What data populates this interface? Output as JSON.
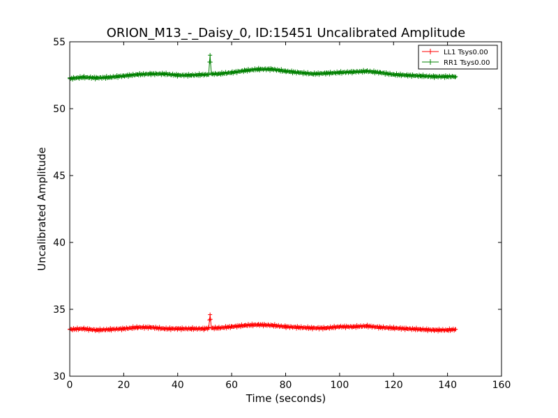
{
  "chart_data": {
    "type": "line",
    "title": "ORION_M13_-_Daisy_0, ID:15451 Uncalibrated Amplitude",
    "xlabel": "Time (seconds)",
    "ylabel": "Uncalibrated Amplitude",
    "xlim": [
      0,
      160
    ],
    "ylim": [
      30,
      55
    ],
    "xticks": [
      0,
      20,
      40,
      60,
      80,
      100,
      120,
      140,
      160
    ],
    "yticks": [
      30,
      35,
      40,
      45,
      50,
      55
    ],
    "grid": false,
    "legend_position": "top-right",
    "series": [
      {
        "name": "LL1 Tsys0.00",
        "color": "#ff0000",
        "marker": "+",
        "x": [
          0,
          5,
          10,
          15,
          20,
          25,
          30,
          35,
          40,
          45,
          50,
          51.5,
          52,
          52.5,
          55,
          60,
          65,
          70,
          75,
          80,
          85,
          90,
          95,
          100,
          105,
          110,
          115,
          120,
          125,
          130,
          135,
          140,
          143
        ],
        "y": [
          33.5,
          33.55,
          33.45,
          33.5,
          33.55,
          33.65,
          33.65,
          33.55,
          33.55,
          33.55,
          33.55,
          33.6,
          34.6,
          33.6,
          33.6,
          33.7,
          33.8,
          33.85,
          33.8,
          33.7,
          33.65,
          33.6,
          33.6,
          33.7,
          33.7,
          33.75,
          33.65,
          33.6,
          33.55,
          33.5,
          33.45,
          33.45,
          33.5
        ]
      },
      {
        "name": "RR1 Tsys0.00",
        "color": "#008000",
        "marker": "+",
        "x": [
          0,
          5,
          10,
          15,
          20,
          25,
          30,
          35,
          40,
          45,
          50,
          51.5,
          52,
          52.5,
          55,
          60,
          65,
          70,
          75,
          80,
          85,
          90,
          95,
          100,
          105,
          110,
          115,
          120,
          125,
          130,
          135,
          140,
          143
        ],
        "y": [
          52.25,
          52.35,
          52.3,
          52.35,
          52.45,
          52.55,
          52.6,
          52.6,
          52.5,
          52.5,
          52.55,
          52.55,
          54.0,
          52.6,
          52.6,
          52.7,
          52.85,
          52.95,
          52.95,
          52.8,
          52.7,
          52.6,
          52.65,
          52.7,
          52.75,
          52.8,
          52.7,
          52.55,
          52.5,
          52.45,
          52.4,
          52.4,
          52.4
        ]
      }
    ]
  }
}
